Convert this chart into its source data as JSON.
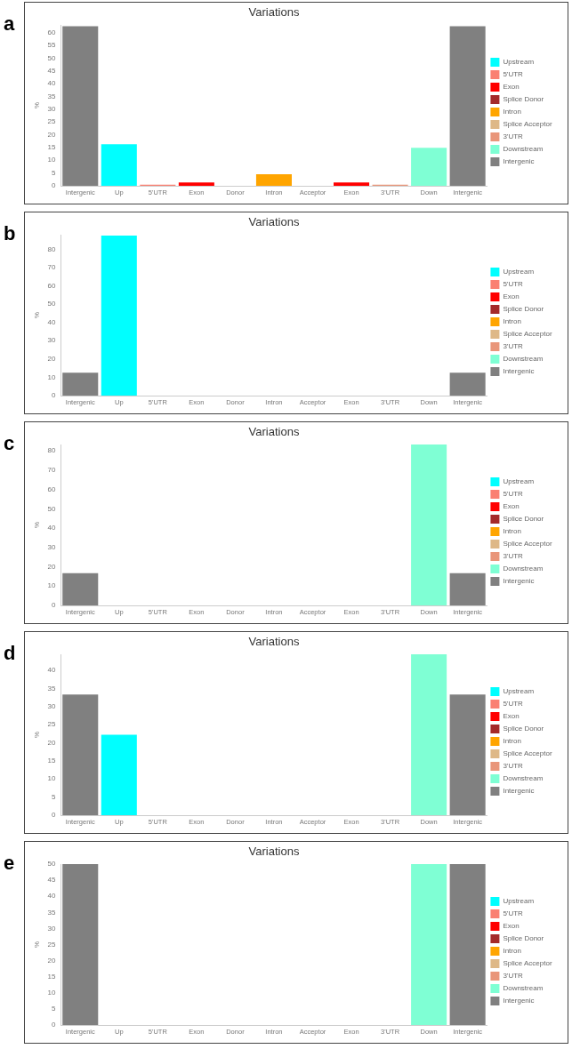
{
  "chart_data": [
    {
      "type": "bar",
      "title": "Variations",
      "ylabel": "%",
      "annotations": [
        "a"
      ],
      "stacked": true,
      "legend": "right",
      "grid": false,
      "categories": [
        "Intergenic",
        "Up",
        "5'UTR",
        "Exon",
        "Donor",
        "Intron",
        "Acceptor",
        "Exon",
        "3'UTR",
        "Down",
        "Intergenic"
      ],
      "ylim": [
        0,
        63
      ],
      "yticks": [
        0,
        5,
        10,
        15,
        20,
        25,
        30,
        35,
        40,
        45,
        50,
        55,
        60
      ],
      "series": [
        {
          "name": "Upstream",
          "color": "#00ffff",
          "values": [
            null,
            16.3,
            null,
            null,
            null,
            null,
            null,
            null,
            null,
            null,
            null
          ]
        },
        {
          "name": "5'UTR",
          "color": "#fa8072",
          "values": [
            null,
            null,
            0.4,
            null,
            null,
            null,
            null,
            null,
            null,
            null,
            null
          ]
        },
        {
          "name": "Exon",
          "color": "#ff0000",
          "values": [
            null,
            null,
            null,
            1.3,
            null,
            null,
            null,
            1.3,
            null,
            null,
            null
          ]
        },
        {
          "name": "Splice Donor",
          "color": "#a52a2a",
          "values": [
            null,
            null,
            null,
            null,
            0,
            null,
            null,
            null,
            null,
            null,
            null
          ]
        },
        {
          "name": "Intron",
          "color": "#ffa500",
          "values": [
            null,
            null,
            null,
            null,
            null,
            4.5,
            null,
            null,
            null,
            null,
            null
          ]
        },
        {
          "name": "Splice Acceptor",
          "color": "#deb887",
          "values": [
            null,
            null,
            null,
            null,
            null,
            null,
            0,
            null,
            null,
            null,
            null
          ]
        },
        {
          "name": "3'UTR",
          "color": "#e9967a",
          "values": [
            null,
            null,
            null,
            null,
            null,
            null,
            null,
            null,
            0.4,
            null,
            null
          ]
        },
        {
          "name": "Downstream",
          "color": "#7fffd4",
          "values": [
            null,
            null,
            null,
            null,
            null,
            null,
            null,
            null,
            null,
            14.9,
            null
          ]
        },
        {
          "name": "Intergenic",
          "color": "#808080",
          "values": [
            62.5,
            null,
            null,
            null,
            null,
            null,
            null,
            null,
            null,
            null,
            62.5
          ]
        }
      ]
    },
    {
      "type": "bar",
      "title": "Variations",
      "ylabel": "%",
      "annotations": [
        "b"
      ],
      "stacked": true,
      "legend": "right",
      "grid": false,
      "categories": [
        "Intergenic",
        "Up",
        "5'UTR",
        "Exon",
        "Donor",
        "Intron",
        "Acceptor",
        "Exon",
        "3'UTR",
        "Down",
        "Intergenic"
      ],
      "ylim": [
        0,
        88
      ],
      "yticks": [
        0,
        10,
        20,
        30,
        40,
        50,
        60,
        70,
        80
      ],
      "series": [
        {
          "name": "Upstream",
          "color": "#00ffff",
          "values": [
            null,
            87.5,
            null,
            null,
            null,
            null,
            null,
            null,
            null,
            null,
            null
          ]
        },
        {
          "name": "5'UTR",
          "color": "#fa8072",
          "values": [
            null,
            null,
            0,
            null,
            null,
            null,
            null,
            null,
            null,
            null,
            null
          ]
        },
        {
          "name": "Exon",
          "color": "#ff0000",
          "values": [
            null,
            null,
            null,
            0,
            null,
            null,
            null,
            0,
            null,
            null,
            null
          ]
        },
        {
          "name": "Splice Donor",
          "color": "#a52a2a",
          "values": [
            null,
            null,
            null,
            null,
            0,
            null,
            null,
            null,
            null,
            null,
            null
          ]
        },
        {
          "name": "Intron",
          "color": "#ffa500",
          "values": [
            null,
            null,
            null,
            null,
            null,
            0,
            null,
            null,
            null,
            null,
            null
          ]
        },
        {
          "name": "Splice Acceptor",
          "color": "#deb887",
          "values": [
            null,
            null,
            null,
            null,
            null,
            null,
            0,
            null,
            null,
            null,
            null
          ]
        },
        {
          "name": "3'UTR",
          "color": "#e9967a",
          "values": [
            null,
            null,
            null,
            null,
            null,
            null,
            null,
            null,
            0,
            null,
            null
          ]
        },
        {
          "name": "Downstream",
          "color": "#7fffd4",
          "values": [
            null,
            null,
            null,
            null,
            null,
            null,
            null,
            null,
            null,
            0,
            null
          ]
        },
        {
          "name": "Intergenic",
          "color": "#808080",
          "values": [
            12.5,
            null,
            null,
            null,
            null,
            null,
            null,
            null,
            null,
            null,
            12.5
          ]
        }
      ]
    },
    {
      "type": "bar",
      "title": "Variations",
      "ylabel": "%",
      "annotations": [
        "c"
      ],
      "stacked": true,
      "legend": "right",
      "grid": false,
      "categories": [
        "Intergenic",
        "Up",
        "5'UTR",
        "Exon",
        "Donor",
        "Intron",
        "Acceptor",
        "Exon",
        "3'UTR",
        "Down",
        "Intergenic"
      ],
      "ylim": [
        0,
        83.3
      ],
      "yticks": [
        0,
        10,
        20,
        30,
        40,
        50,
        60,
        70,
        80
      ],
      "series": [
        {
          "name": "Upstream",
          "color": "#00ffff",
          "values": [
            null,
            0,
            null,
            null,
            null,
            null,
            null,
            null,
            null,
            null,
            null
          ]
        },
        {
          "name": "5'UTR",
          "color": "#fa8072",
          "values": [
            null,
            null,
            0,
            null,
            null,
            null,
            null,
            null,
            null,
            null,
            null
          ]
        },
        {
          "name": "Exon",
          "color": "#ff0000",
          "values": [
            null,
            null,
            null,
            0,
            null,
            null,
            null,
            0,
            null,
            null,
            null
          ]
        },
        {
          "name": "Splice Donor",
          "color": "#a52a2a",
          "values": [
            null,
            null,
            null,
            null,
            0,
            null,
            null,
            null,
            null,
            null,
            null
          ]
        },
        {
          "name": "Intron",
          "color": "#ffa500",
          "values": [
            null,
            null,
            null,
            null,
            null,
            0,
            null,
            null,
            null,
            null,
            null
          ]
        },
        {
          "name": "Splice Acceptor",
          "color": "#deb887",
          "values": [
            null,
            null,
            null,
            null,
            null,
            null,
            0,
            null,
            null,
            null,
            null
          ]
        },
        {
          "name": "3'UTR",
          "color": "#e9967a",
          "values": [
            null,
            null,
            null,
            null,
            null,
            null,
            null,
            null,
            0,
            null,
            null
          ]
        },
        {
          "name": "Downstream",
          "color": "#7fffd4",
          "values": [
            null,
            null,
            null,
            null,
            null,
            null,
            null,
            null,
            null,
            83.3,
            null
          ]
        },
        {
          "name": "Intergenic",
          "color": "#808080",
          "values": [
            16.7,
            null,
            null,
            null,
            null,
            null,
            null,
            null,
            null,
            null,
            16.7
          ]
        }
      ]
    },
    {
      "type": "bar",
      "title": "Variations",
      "ylabel": "%",
      "annotations": [
        "d"
      ],
      "stacked": true,
      "legend": "right",
      "grid": false,
      "categories": [
        "Intergenic",
        "Up",
        "5'UTR",
        "Exon",
        "Donor",
        "Intron",
        "Acceptor",
        "Exon",
        "3'UTR",
        "Down",
        "Intergenic"
      ],
      "ylim": [
        0,
        44.4
      ],
      "yticks": [
        0,
        5,
        10,
        15,
        20,
        25,
        30,
        35,
        40
      ],
      "series": [
        {
          "name": "Upstream",
          "color": "#00ffff",
          "values": [
            null,
            22.2,
            null,
            null,
            null,
            null,
            null,
            null,
            null,
            null,
            null
          ]
        },
        {
          "name": "5'UTR",
          "color": "#fa8072",
          "values": [
            null,
            null,
            0,
            null,
            null,
            null,
            null,
            null,
            null,
            null,
            null
          ]
        },
        {
          "name": "Exon",
          "color": "#ff0000",
          "values": [
            null,
            null,
            null,
            0,
            null,
            null,
            null,
            0,
            null,
            null,
            null
          ]
        },
        {
          "name": "Splice Donor",
          "color": "#a52a2a",
          "values": [
            null,
            null,
            null,
            null,
            0,
            null,
            null,
            null,
            null,
            null,
            null
          ]
        },
        {
          "name": "Intron",
          "color": "#ffa500",
          "values": [
            null,
            null,
            null,
            null,
            null,
            0,
            null,
            null,
            null,
            null,
            null
          ]
        },
        {
          "name": "Splice Acceptor",
          "color": "#deb887",
          "values": [
            null,
            null,
            null,
            null,
            null,
            null,
            0,
            null,
            null,
            null,
            null
          ]
        },
        {
          "name": "3'UTR",
          "color": "#e9967a",
          "values": [
            null,
            null,
            null,
            null,
            null,
            null,
            null,
            null,
            0,
            null,
            null
          ]
        },
        {
          "name": "Downstream",
          "color": "#7fffd4",
          "values": [
            null,
            null,
            null,
            null,
            null,
            null,
            null,
            null,
            null,
            44.4,
            null
          ]
        },
        {
          "name": "Intergenic",
          "color": "#808080",
          "values": [
            33.3,
            null,
            null,
            null,
            null,
            null,
            null,
            null,
            null,
            null,
            33.3
          ]
        }
      ]
    },
    {
      "type": "bar",
      "title": "Variations",
      "ylabel": "%",
      "annotations": [
        "e"
      ],
      "stacked": true,
      "legend": "right",
      "grid": false,
      "categories": [
        "Intergenic",
        "Up",
        "5'UTR",
        "Exon",
        "Donor",
        "Intron",
        "Acceptor",
        "Exon",
        "3'UTR",
        "Down",
        "Intergenic"
      ],
      "ylim": [
        0,
        50
      ],
      "yticks": [
        0,
        5,
        10,
        15,
        20,
        25,
        30,
        35,
        40,
        45,
        50
      ],
      "series": [
        {
          "name": "Upstream",
          "color": "#00ffff",
          "values": [
            null,
            0,
            null,
            null,
            null,
            null,
            null,
            null,
            null,
            null,
            null
          ]
        },
        {
          "name": "5'UTR",
          "color": "#fa8072",
          "values": [
            null,
            null,
            0,
            null,
            null,
            null,
            null,
            null,
            null,
            null,
            null
          ]
        },
        {
          "name": "Exon",
          "color": "#ff0000",
          "values": [
            null,
            null,
            null,
            0,
            null,
            null,
            null,
            0,
            null,
            null,
            null
          ]
        },
        {
          "name": "Splice Donor",
          "color": "#a52a2a",
          "values": [
            null,
            null,
            null,
            null,
            0,
            null,
            null,
            null,
            null,
            null,
            null
          ]
        },
        {
          "name": "Intron",
          "color": "#ffa500",
          "values": [
            null,
            null,
            null,
            null,
            null,
            0,
            null,
            null,
            null,
            null,
            null
          ]
        },
        {
          "name": "Splice Acceptor",
          "color": "#deb887",
          "values": [
            null,
            null,
            null,
            null,
            null,
            null,
            0,
            null,
            null,
            null,
            null
          ]
        },
        {
          "name": "3'UTR",
          "color": "#e9967a",
          "values": [
            null,
            null,
            null,
            null,
            null,
            null,
            null,
            null,
            0,
            null,
            null
          ]
        },
        {
          "name": "Downstream",
          "color": "#7fffd4",
          "values": [
            null,
            null,
            null,
            null,
            null,
            null,
            null,
            null,
            null,
            50,
            null
          ]
        },
        {
          "name": "Intergenic",
          "color": "#808080",
          "values": [
            50,
            null,
            null,
            null,
            null,
            null,
            null,
            null,
            null,
            null,
            50
          ]
        }
      ]
    }
  ]
}
